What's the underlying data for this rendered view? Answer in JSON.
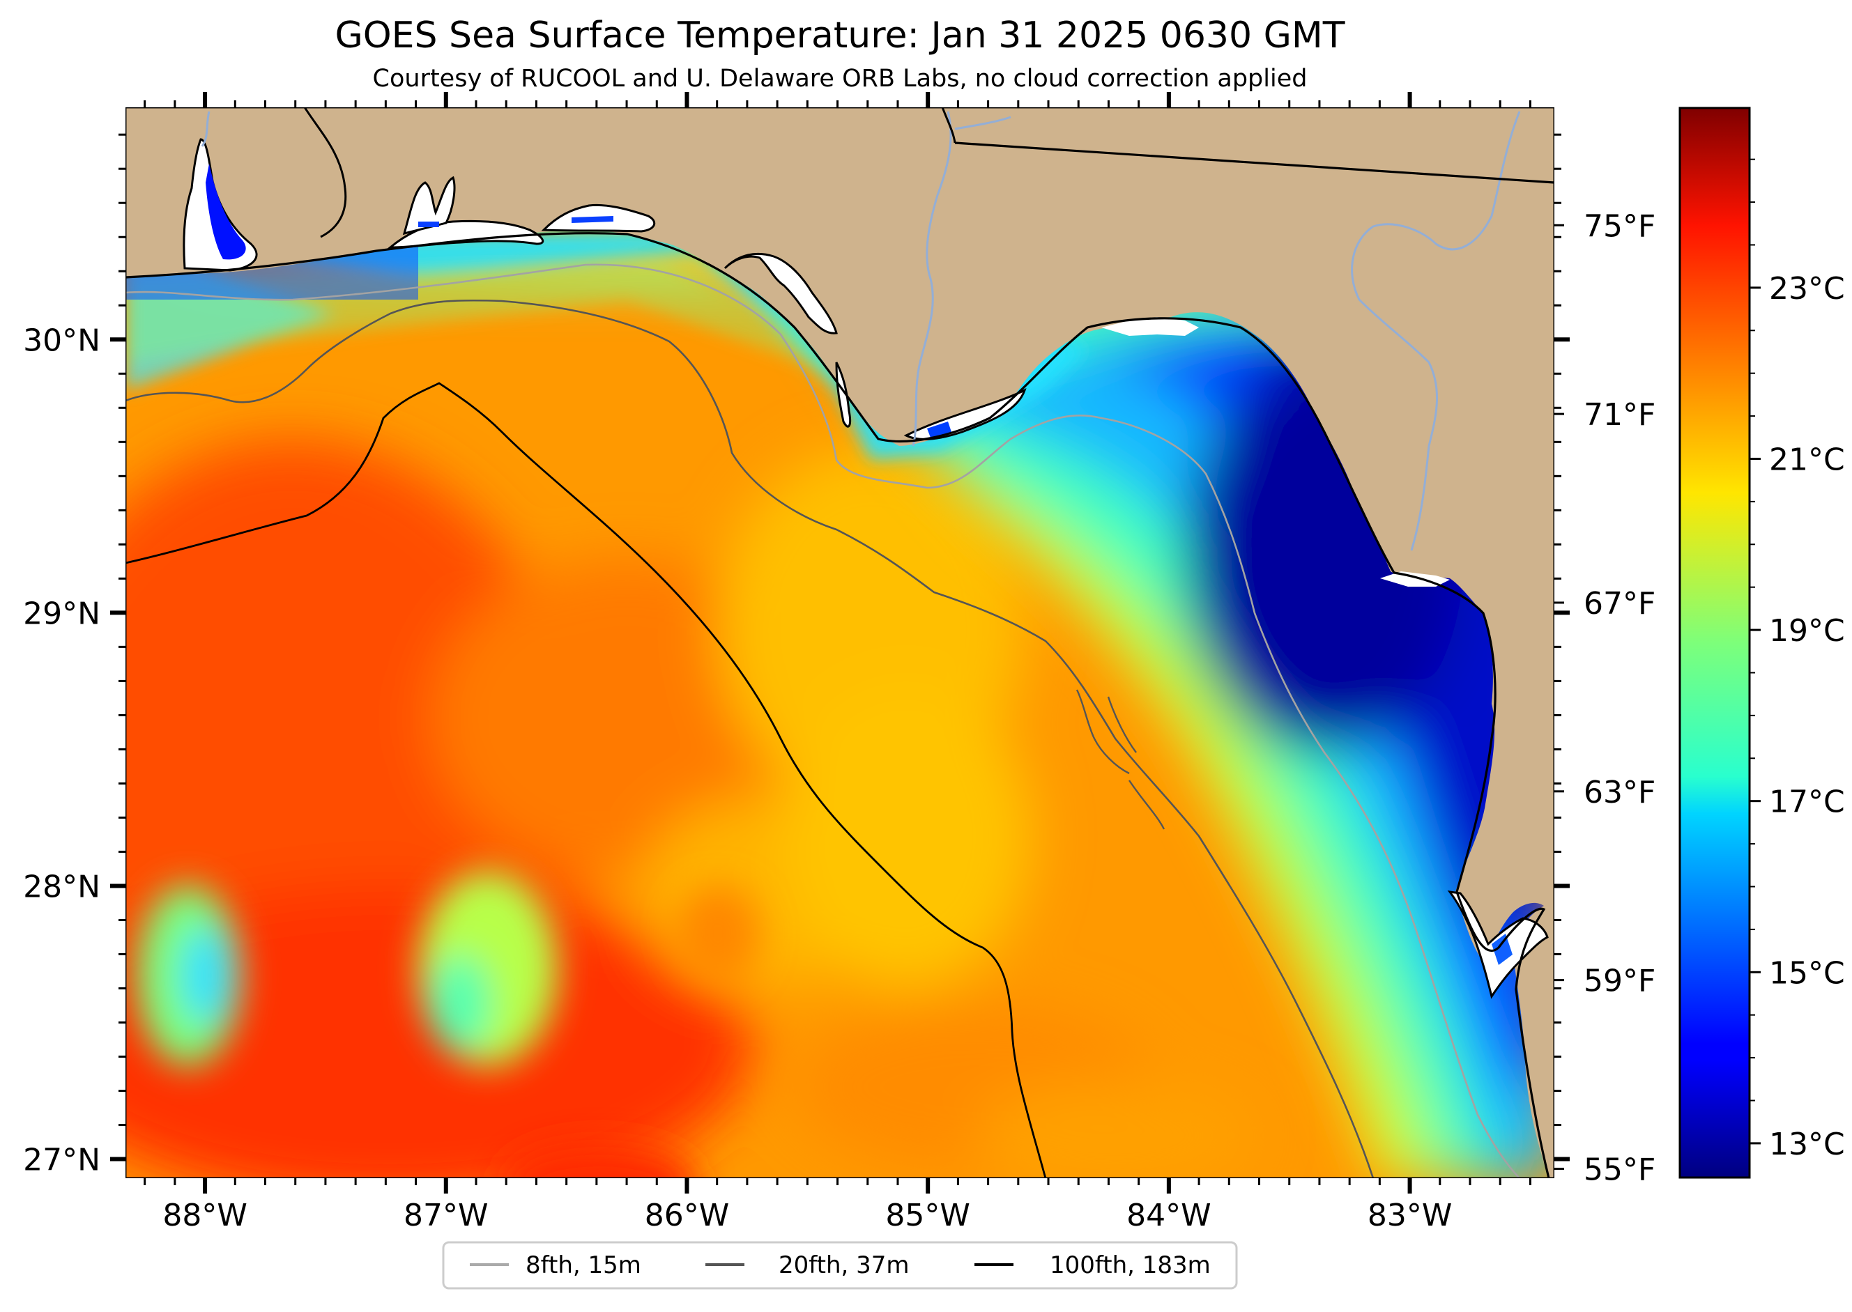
{
  "title": "GOES Sea Surface Temperature: Jan 31 2025 0630 GMT",
  "subtitle": "Courtesy of RUCOOL and U. Delaware ORB Labs, no cloud correction applied",
  "map": {
    "lon_range": [
      -88.33,
      -82.4
    ],
    "lat_range": [
      26.93,
      30.85
    ],
    "lon_ticks": [
      {
        "value": -88,
        "label": "88°W"
      },
      {
        "value": -87,
        "label": "87°W"
      },
      {
        "value": -86,
        "label": "86°W"
      },
      {
        "value": -85,
        "label": "85°W"
      },
      {
        "value": -84,
        "label": "84°W"
      },
      {
        "value": -83,
        "label": "83°W"
      }
    ],
    "lat_ticks": [
      {
        "value": 30,
        "label": "30°N"
      },
      {
        "value": 29,
        "label": "29°N"
      },
      {
        "value": 28,
        "label": "28°N"
      },
      {
        "value": 27,
        "label": "27°N"
      }
    ],
    "fahrenheit_ticks": [
      {
        "value": 75,
        "label": "75°F"
      },
      {
        "value": 71,
        "label": "71°F"
      },
      {
        "value": 67,
        "label": "67°F"
      },
      {
        "value": 63,
        "label": "63°F"
      },
      {
        "value": 59,
        "label": "59°F"
      },
      {
        "value": 55,
        "label": "55°F"
      }
    ],
    "land_color": "#cfb38d",
    "river_color": "#93aed6"
  },
  "colorbar": {
    "range_c": [
      12.6,
      25.1
    ],
    "colormap": "jet",
    "ticks": [
      {
        "value": 23,
        "label": "23°C"
      },
      {
        "value": 21,
        "label": "21°C"
      },
      {
        "value": 19,
        "label": "19°C"
      },
      {
        "value": 17,
        "label": "17°C"
      },
      {
        "value": 15,
        "label": "15°C"
      },
      {
        "value": 13,
        "label": "13°C"
      }
    ]
  },
  "legend": {
    "items": [
      {
        "label": "8fth, 15m",
        "color": "#aaaaaa"
      },
      {
        "label": "20fth, 37m",
        "color": "#555555"
      },
      {
        "label": "100fth, 183m",
        "color": "#000000"
      }
    ]
  }
}
